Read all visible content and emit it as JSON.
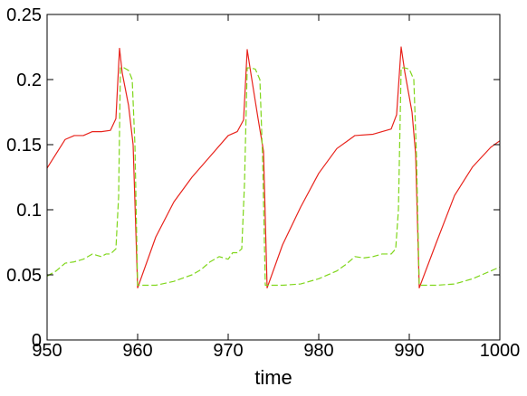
{
  "chart_data": {
    "type": "line",
    "title": "",
    "xlabel": "time",
    "ylabel": "",
    "xlim": [
      950,
      1000
    ],
    "ylim": [
      0,
      0.25
    ],
    "xticks": [
      950,
      960,
      970,
      980,
      990,
      1000
    ],
    "xtick_labels": [
      "950",
      "960",
      "970",
      "980",
      "990",
      "1000"
    ],
    "yticks": [
      0,
      0.05,
      0.1,
      0.15,
      0.2,
      0.25
    ],
    "ytick_labels": [
      "0",
      "0.05",
      "0.1",
      "0.15",
      "0.2",
      "0.25"
    ],
    "grid": false,
    "series": [
      {
        "color": "#e8231c",
        "dash": "solid",
        "x": [
          950,
          951,
          952,
          953,
          954,
          955,
          956,
          957,
          957.6,
          958.0,
          958.3,
          959.0,
          959.5,
          960.0,
          962,
          964,
          966,
          968,
          970,
          971,
          971.7,
          972.1,
          972.5,
          973.3,
          973.9,
          974.3,
          976,
          978,
          980,
          982,
          984,
          986,
          988,
          988.6,
          989.1,
          989.5,
          990.3,
          990.7,
          991.1,
          993,
          995,
          997,
          999,
          1000
        ],
        "y": [
          0.132,
          0.143,
          0.154,
          0.157,
          0.157,
          0.16,
          0.16,
          0.161,
          0.17,
          0.224,
          0.205,
          0.18,
          0.15,
          0.04,
          0.079,
          0.106,
          0.125,
          0.141,
          0.157,
          0.16,
          0.169,
          0.223,
          0.205,
          0.17,
          0.145,
          0.04,
          0.073,
          0.102,
          0.128,
          0.147,
          0.157,
          0.158,
          0.162,
          0.173,
          0.225,
          0.206,
          0.175,
          0.143,
          0.04,
          0.075,
          0.111,
          0.133,
          0.148,
          0.153
        ]
      },
      {
        "color": "#7fd61a",
        "dash": "dashed",
        "x": [
          950,
          951,
          952,
          953,
          954,
          955,
          955.5,
          956,
          956.5,
          957,
          957.6,
          957.9,
          958.1,
          958.5,
          959.0,
          959.4,
          959.7,
          960.0,
          962,
          964,
          966,
          967,
          968,
          969,
          970,
          970.5,
          971,
          971.5,
          971.8,
          972.1,
          972.5,
          973.0,
          973.5,
          973.8,
          974.1,
          976,
          978,
          980,
          982,
          983,
          984,
          985,
          986,
          987,
          988,
          988.5,
          988.8,
          989.1,
          989.5,
          990.0,
          990.5,
          990.8,
          991.1,
          993,
          995,
          997,
          999,
          1000
        ],
        "y": [
          0.049,
          0.053,
          0.059,
          0.06,
          0.062,
          0.066,
          0.065,
          0.064,
          0.066,
          0.066,
          0.07,
          0.11,
          0.209,
          0.209,
          0.207,
          0.2,
          0.15,
          0.042,
          0.042,
          0.045,
          0.05,
          0.054,
          0.06,
          0.064,
          0.062,
          0.067,
          0.067,
          0.07,
          0.12,
          0.209,
          0.209,
          0.208,
          0.2,
          0.14,
          0.042,
          0.042,
          0.043,
          0.047,
          0.053,
          0.058,
          0.064,
          0.063,
          0.064,
          0.066,
          0.066,
          0.07,
          0.1,
          0.209,
          0.209,
          0.208,
          0.2,
          0.14,
          0.042,
          0.042,
          0.043,
          0.047,
          0.053,
          0.056
        ]
      }
    ]
  }
}
